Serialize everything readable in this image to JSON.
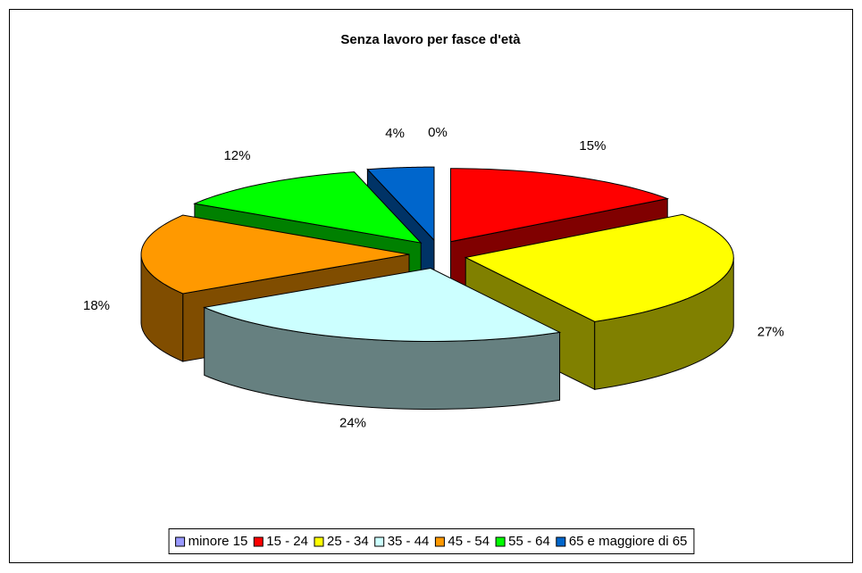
{
  "chart_data": {
    "type": "pie3d",
    "title": "Senza lavoro per fasce d'età",
    "categories": [
      "minore 15",
      "15 - 24",
      "25 - 34",
      "35 - 44",
      "45 - 54",
      "55 - 64",
      "65 e maggiore di 65"
    ],
    "values": [
      0,
      15,
      27,
      24,
      18,
      12,
      4
    ],
    "value_labels": [
      "0%",
      "15%",
      "27%",
      "24%",
      "18%",
      "12%",
      "4%"
    ],
    "colors": [
      "#9999ff",
      "#ff0000",
      "#ffff00",
      "#ccffff",
      "#ff9900",
      "#00ff00",
      "#0066cc"
    ],
    "legend": "bottom"
  }
}
